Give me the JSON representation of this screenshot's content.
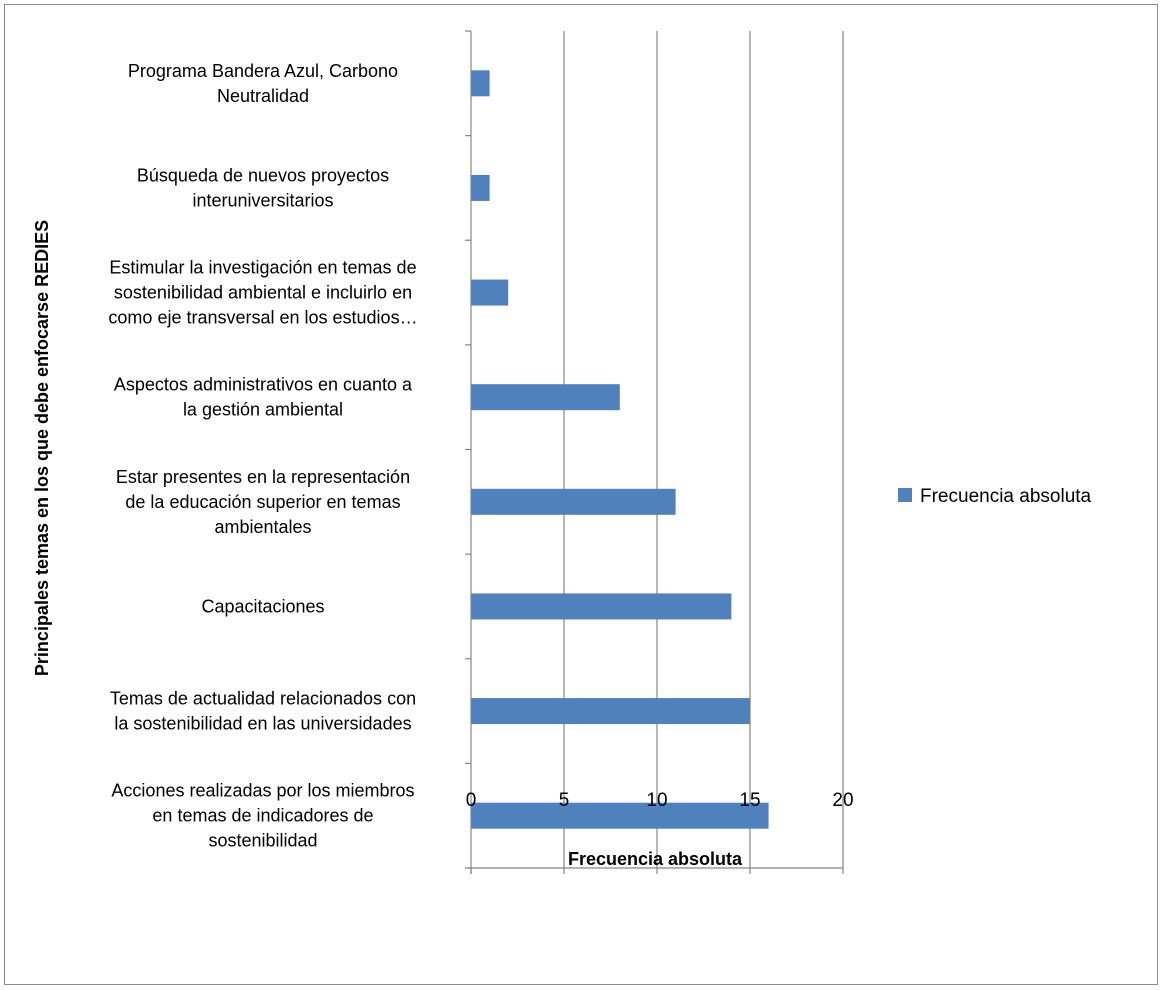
{
  "chart_data": {
    "type": "bar",
    "orientation": "horizontal",
    "xlabel": "Frecuencia absoluta",
    "ylabel": "Principales temas en los que debe enfocarse REDIES",
    "xlim": [
      0,
      20
    ],
    "xticks": [
      0,
      5,
      10,
      15,
      20
    ],
    "grid": true,
    "legend_position": "right",
    "categories": [
      [
        "Programa Bandera Azul, Carbono",
        "Neutralidad"
      ],
      [
        "Búsqueda de nuevos proyectos",
        "interuniversitarios"
      ],
      [
        "Estimular la investigación en temas de",
        "sostenibilidad ambiental e incluirlo en",
        "como eje transversal en los estudios…"
      ],
      [
        "Aspectos administrativos en cuanto a",
        "la gestión ambiental"
      ],
      [
        "Estar presentes en la representación",
        "de la educación superior en temas",
        "ambientales"
      ],
      [
        "Capacitaciones"
      ],
      [
        "Temas de actualidad relacionados con",
        "la sostenibilidad en las universidades"
      ],
      [
        "Acciones realizadas por los miembros",
        "en temas de indicadores de",
        "sostenibilidad"
      ]
    ],
    "series": [
      {
        "name": "Frecuencia absoluta",
        "color": "#4f81bd",
        "values": [
          1,
          1,
          2,
          8,
          11,
          14,
          15,
          16
        ]
      }
    ]
  }
}
